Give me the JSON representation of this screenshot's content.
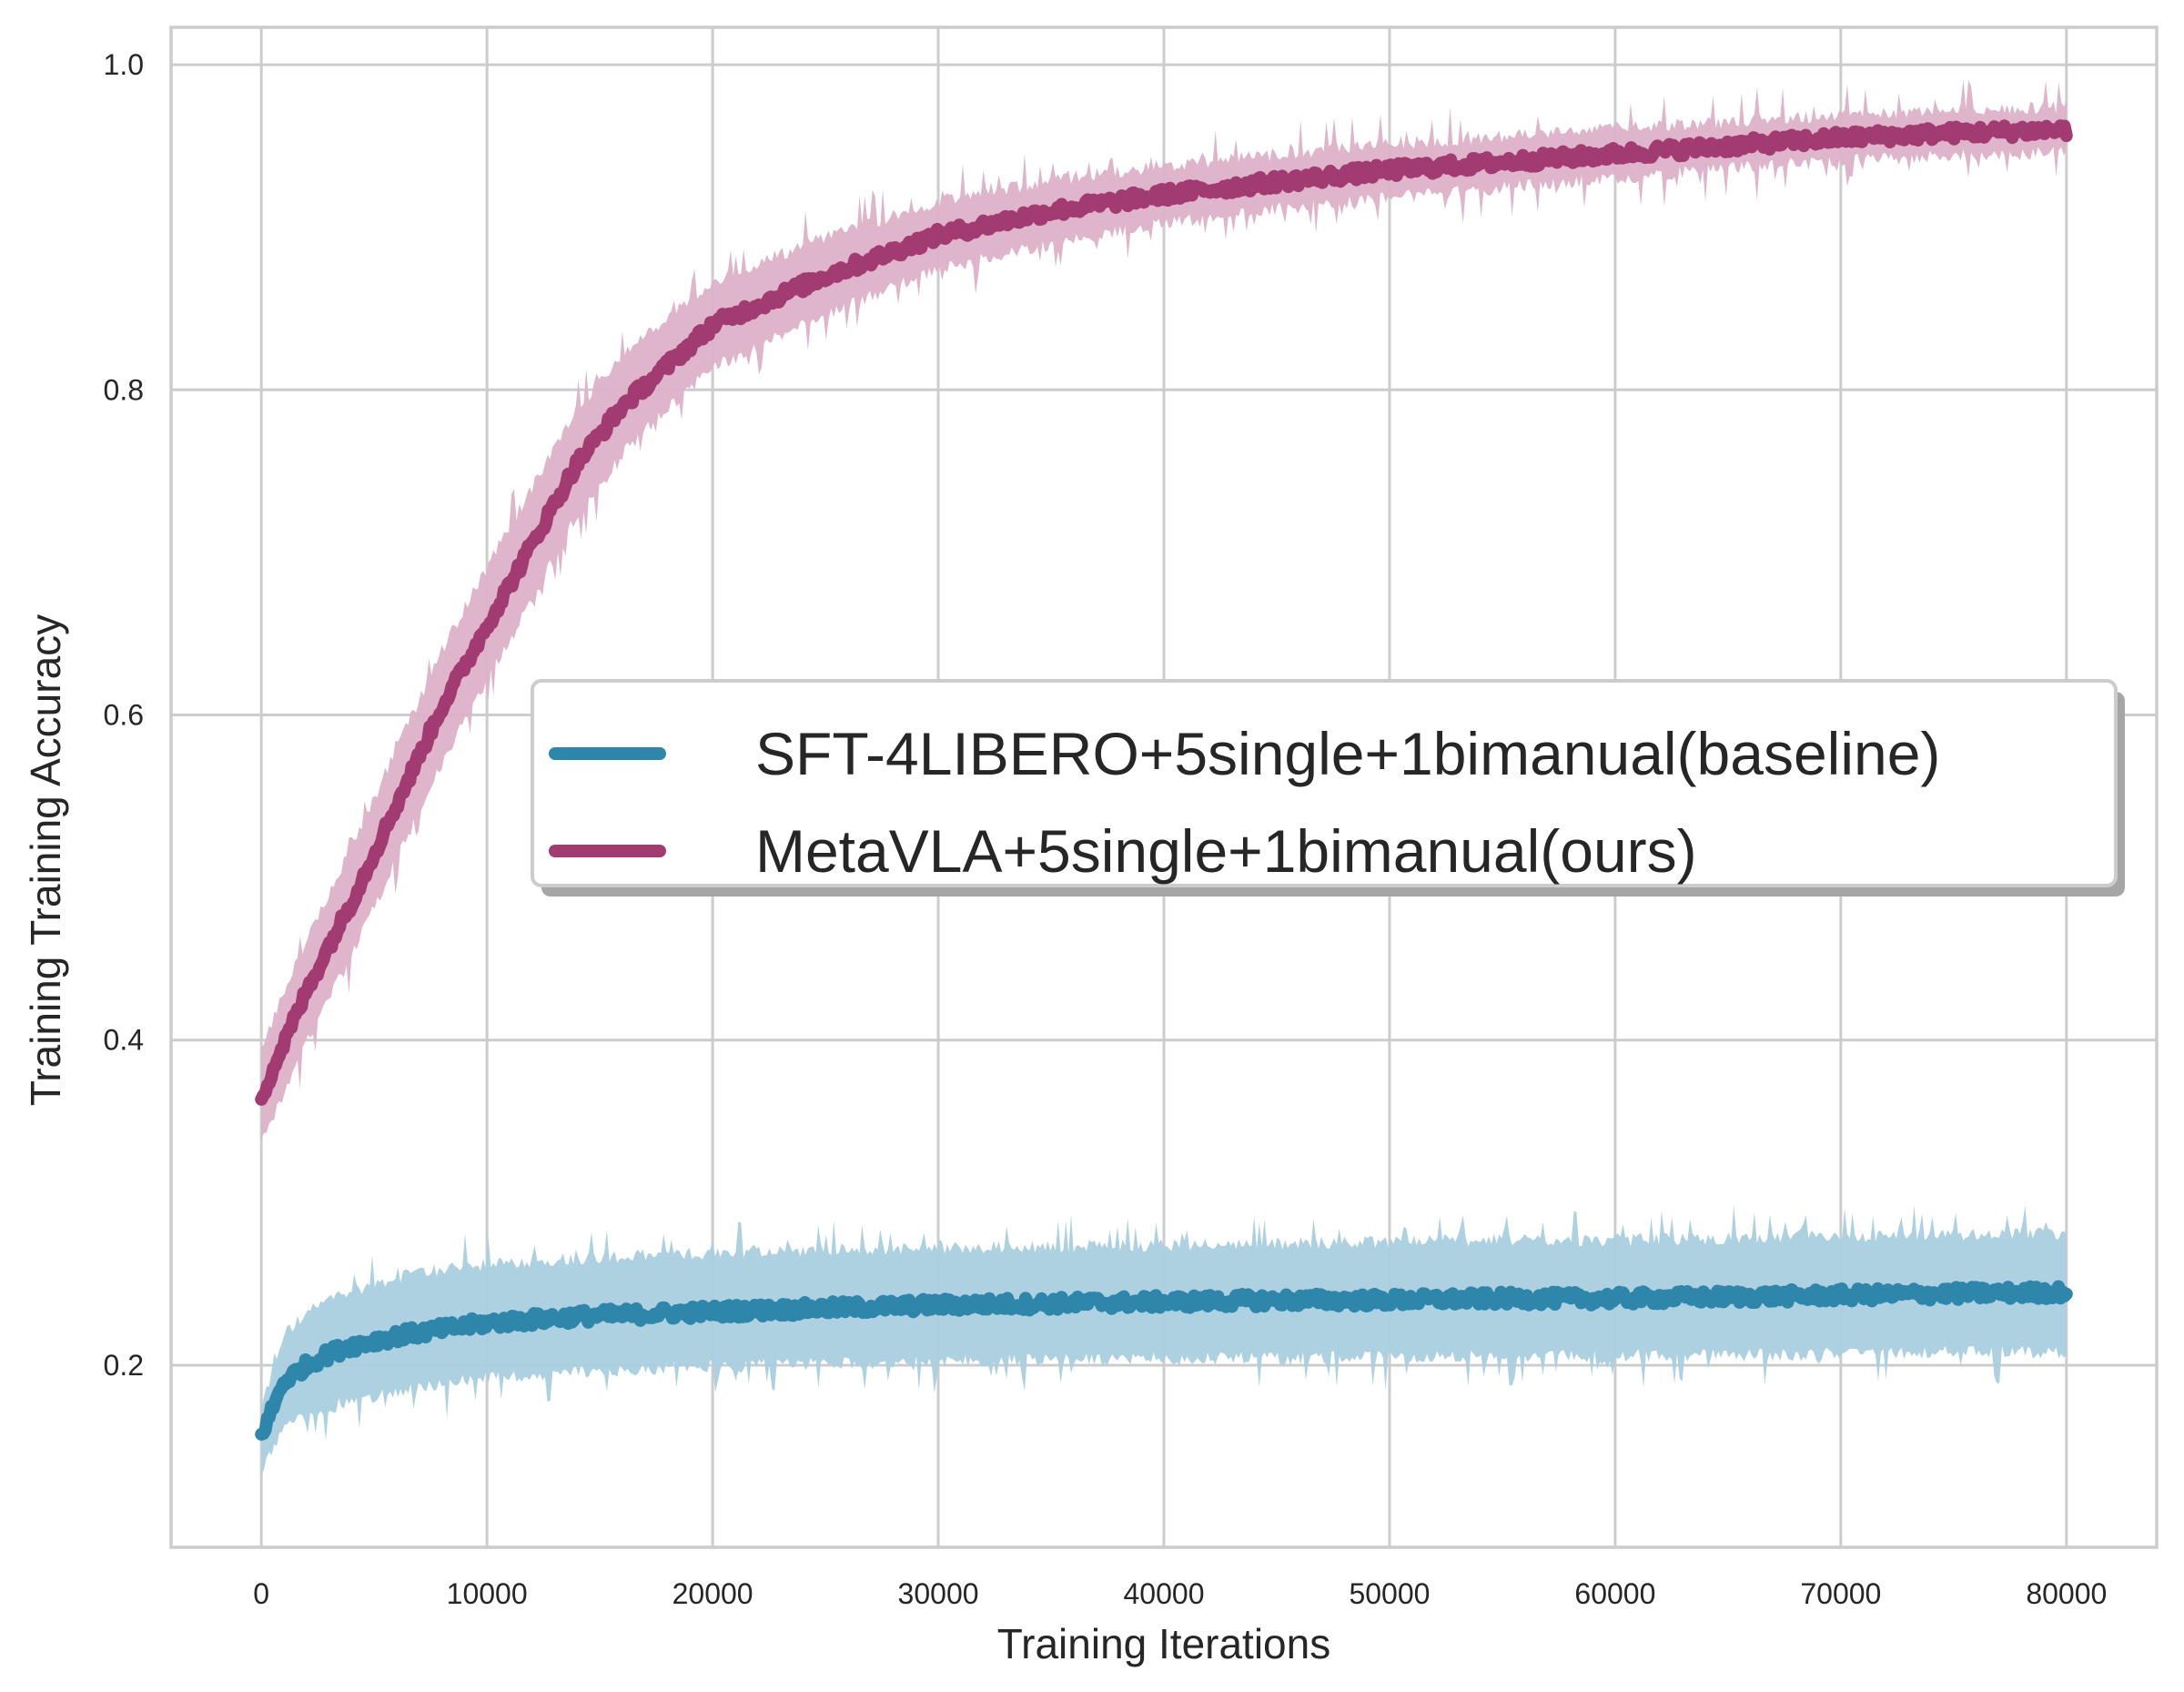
{
  "chart_data": {
    "type": "line",
    "title": "",
    "xlabel": "Training Iterations",
    "ylabel": "Training Training Accuracy",
    "xlim": [
      -4000,
      84000
    ],
    "ylim": [
      0.088,
      1.023
    ],
    "xticks": [
      0,
      10000,
      20000,
      30000,
      40000,
      50000,
      60000,
      70000,
      80000
    ],
    "xtick_labels": [
      "0",
      "10000",
      "20000",
      "30000",
      "40000",
      "50000",
      "60000",
      "70000",
      "80000"
    ],
    "yticks": [
      0.2,
      0.4,
      0.6,
      0.8,
      1.0
    ],
    "ytick_labels": [
      "0.2",
      "0.4",
      "0.6",
      "0.8",
      "1.0"
    ],
    "grid": true,
    "legend_position": "center-right",
    "x": [
      0,
      1000,
      2000,
      3000,
      4000,
      6000,
      8000,
      10000,
      12000,
      14000,
      16000,
      18000,
      20000,
      25000,
      30000,
      35000,
      40000,
      45000,
      50000,
      55000,
      60000,
      65000,
      70000,
      75000,
      80000
    ],
    "series": [
      {
        "name": "SFT-4LIBERO+5single+1bimanual(baseline)",
        "color": "#2e86ab",
        "band_color": "#a9cfdf",
        "values": [
          0.157,
          0.19,
          0.2,
          0.207,
          0.212,
          0.218,
          0.222,
          0.226,
          0.228,
          0.23,
          0.231,
          0.232,
          0.233,
          0.235,
          0.237,
          0.238,
          0.239,
          0.24,
          0.24,
          0.241,
          0.241,
          0.242,
          0.243,
          0.244,
          0.245
        ],
        "band_lower": [
          0.14,
          0.165,
          0.172,
          0.178,
          0.182,
          0.188,
          0.192,
          0.196,
          0.198,
          0.2,
          0.201,
          0.202,
          0.203,
          0.205,
          0.206,
          0.207,
          0.208,
          0.208,
          0.209,
          0.209,
          0.21,
          0.21,
          0.211,
          0.212,
          0.212
        ],
        "band_upper": [
          0.17,
          0.215,
          0.228,
          0.236,
          0.242,
          0.25,
          0.255,
          0.258,
          0.26,
          0.262,
          0.263,
          0.264,
          0.265,
          0.267,
          0.268,
          0.269,
          0.27,
          0.271,
          0.272,
          0.273,
          0.273,
          0.274,
          0.275,
          0.276,
          0.277
        ]
      },
      {
        "name": "MetaVLA+5single+1bimanual(ours)",
        "color": "#a23b72",
        "band_color": "#dcb1c8",
        "values": [
          0.365,
          0.398,
          0.43,
          0.458,
          0.485,
          0.545,
          0.605,
          0.655,
          0.705,
          0.755,
          0.79,
          0.815,
          0.84,
          0.87,
          0.895,
          0.91,
          0.92,
          0.928,
          0.935,
          0.94,
          0.945,
          0.95,
          0.955,
          0.958,
          0.96
        ],
        "band_lower": [
          0.34,
          0.372,
          0.402,
          0.43,
          0.456,
          0.515,
          0.574,
          0.625,
          0.675,
          0.727,
          0.765,
          0.792,
          0.818,
          0.85,
          0.878,
          0.894,
          0.906,
          0.915,
          0.922,
          0.928,
          0.934,
          0.94,
          0.945,
          0.948,
          0.95
        ],
        "band_upper": [
          0.392,
          0.425,
          0.458,
          0.487,
          0.515,
          0.575,
          0.636,
          0.687,
          0.736,
          0.785,
          0.818,
          0.84,
          0.863,
          0.89,
          0.912,
          0.925,
          0.934,
          0.941,
          0.947,
          0.952,
          0.957,
          0.961,
          0.965,
          0.968,
          0.97
        ]
      }
    ]
  }
}
